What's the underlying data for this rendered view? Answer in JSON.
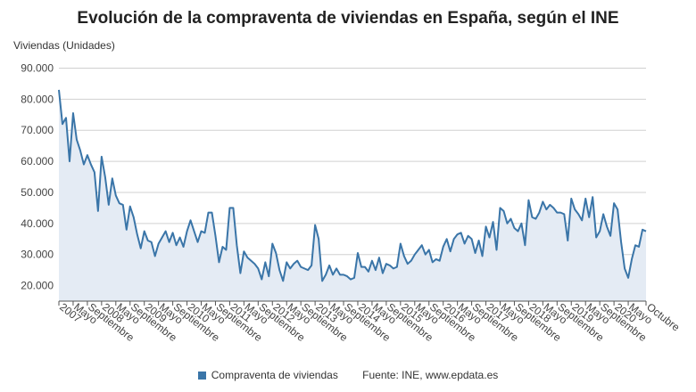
{
  "chart_data": {
    "type": "area",
    "title": "Evolución de la compraventa de viviendas en España, según el INE",
    "ylabel": "Viviendas (Unidades)",
    "ylim": [
      15000,
      93000
    ],
    "yticks": [
      "20.000",
      "30.000",
      "40.000",
      "50.000",
      "60.000",
      "70.000",
      "80.000",
      "90.000"
    ],
    "ytick_values": [
      20000,
      30000,
      40000,
      50000,
      60000,
      70000,
      80000,
      90000
    ],
    "x_start": "Enero 2007",
    "x_end": "Octubre 2020",
    "xticks": [
      {
        "label": "2007",
        "index": 0
      },
      {
        "label": "Mayo",
        "index": 4
      },
      {
        "label": "Septiembre",
        "index": 8
      },
      {
        "label": "2008",
        "index": 12
      },
      {
        "label": "Mayo",
        "index": 16
      },
      {
        "label": "Septiembre",
        "index": 20
      },
      {
        "label": "2009",
        "index": 24
      },
      {
        "label": "Mayo",
        "index": 28
      },
      {
        "label": "Septiembre",
        "index": 32
      },
      {
        "label": "2010",
        "index": 36
      },
      {
        "label": "Mayo",
        "index": 40
      },
      {
        "label": "Septiembre",
        "index": 44
      },
      {
        "label": "2011",
        "index": 48
      },
      {
        "label": "Mayo",
        "index": 52
      },
      {
        "label": "Septiembre",
        "index": 56
      },
      {
        "label": "2012",
        "index": 60
      },
      {
        "label": "Mayo",
        "index": 64
      },
      {
        "label": "Septiembre",
        "index": 68
      },
      {
        "label": "2013",
        "index": 72
      },
      {
        "label": "Mayo",
        "index": 76
      },
      {
        "label": "Septiembre",
        "index": 80
      },
      {
        "label": "2014",
        "index": 84
      },
      {
        "label": "Mayo",
        "index": 88
      },
      {
        "label": "Septiembre",
        "index": 92
      },
      {
        "label": "2015",
        "index": 96
      },
      {
        "label": "Mayo",
        "index": 100
      },
      {
        "label": "Septiembre",
        "index": 104
      },
      {
        "label": "2016",
        "index": 108
      },
      {
        "label": "Mayo",
        "index": 112
      },
      {
        "label": "Septiembre",
        "index": 116
      },
      {
        "label": "2017",
        "index": 120
      },
      {
        "label": "Mayo",
        "index": 124
      },
      {
        "label": "Septiembre",
        "index": 128
      },
      {
        "label": "2018",
        "index": 132
      },
      {
        "label": "Mayo",
        "index": 136
      },
      {
        "label": "Septiembre",
        "index": 140
      },
      {
        "label": "2019",
        "index": 144
      },
      {
        "label": "Mayo",
        "index": 148
      },
      {
        "label": "Septiembre",
        "index": 152
      },
      {
        "label": "2020",
        "index": 156
      },
      {
        "label": "Mayo",
        "index": 160
      },
      {
        "label": "Octubre",
        "index": 165
      }
    ],
    "series": [
      {
        "name": "Compraventa de viviendas",
        "color": "#3a75a8",
        "fill": "#e4ebf4",
        "values": [
          83000,
          72000,
          74000,
          60000,
          75500,
          67000,
          63500,
          59000,
          62000,
          59000,
          56500,
          44000,
          61500,
          55000,
          46000,
          54500,
          49000,
          46500,
          46000,
          38000,
          45500,
          42000,
          36500,
          32000,
          37500,
          34500,
          34000,
          29500,
          33500,
          35500,
          37500,
          34000,
          37000,
          33000,
          35500,
          32500,
          37500,
          41000,
          37500,
          34000,
          37500,
          37000,
          43500,
          43500,
          36000,
          27500,
          32500,
          31500,
          45000,
          45000,
          33000,
          24000,
          31000,
          29000,
          28000,
          27000,
          25500,
          22000,
          27500,
          23000,
          33500,
          30500,
          25000,
          21500,
          27500,
          25500,
          27000,
          28000,
          26000,
          25500,
          25000,
          26500,
          39500,
          35000,
          21500,
          23500,
          26500,
          23500,
          25500,
          23500,
          23500,
          23000,
          22000,
          22500,
          30500,
          26000,
          26000,
          24500,
          28000,
          25000,
          29000,
          24000,
          27000,
          26500,
          25500,
          26000,
          33500,
          29500,
          27000,
          28000,
          30000,
          31500,
          33000,
          30000,
          31500,
          27500,
          28500,
          28000,
          32500,
          35000,
          31000,
          35000,
          36500,
          37000,
          33500,
          36000,
          35000,
          30500,
          34500,
          29500,
          39000,
          35500,
          40500,
          31500,
          45000,
          44000,
          40000,
          41500,
          38500,
          37500,
          40000,
          33000,
          47500,
          42000,
          41500,
          43500,
          47000,
          44500,
          46000,
          45000,
          43500,
          43500,
          43000,
          34500,
          48000,
          44500,
          43000,
          41000,
          48000,
          42000,
          48500,
          35500,
          37500,
          43000,
          39000,
          36000,
          46500,
          44500,
          34000,
          25500,
          22500,
          28500,
          33000,
          32500,
          38000,
          37500
        ]
      }
    ],
    "legend": [
      {
        "label": "Compraventa de viviendas",
        "color": "#3a75a8"
      },
      {
        "label": "Fuente: INE, www.epdata.es"
      }
    ]
  }
}
